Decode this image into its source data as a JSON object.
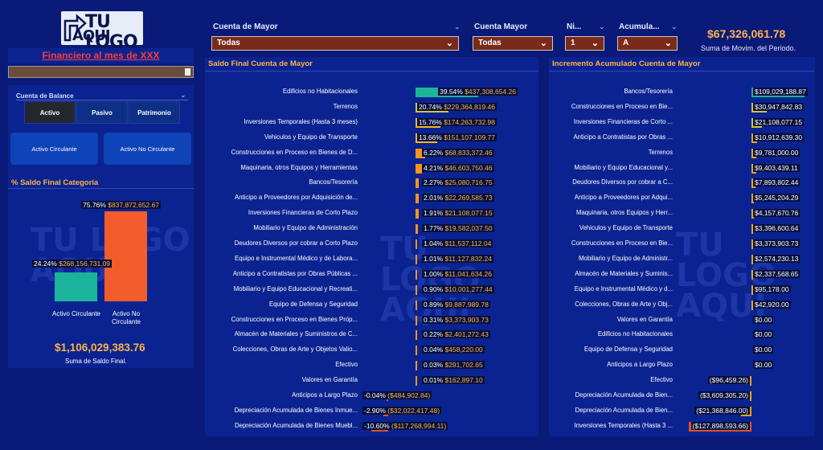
{
  "logo": {
    "line1": "TU LOGO",
    "line2": "AQUI"
  },
  "filters": [
    {
      "label": "Cuenta de Mayor",
      "value": "Todas"
    },
    {
      "label": "Cuenta Mayor",
      "value": "Todas"
    },
    {
      "label": "Ni...",
      "value": "1"
    },
    {
      "label": "Acumula...",
      "value": "A"
    }
  ],
  "kpi_top": {
    "value": "$67,326,061.78",
    "label": "Suma de Movim. del Periodo."
  },
  "left": {
    "title": "Financiero al mes de XXX",
    "cuenta_label": "Cuenta de Balance",
    "tabs": [
      "Activo",
      "Pasivo",
      "Patrimonio"
    ],
    "buttons": [
      "Activo Circulante",
      "Activo No Circulante"
    ],
    "chart_title": "% Saldo Final Categoría",
    "total": "$1,106,029,383.76",
    "total_label": "Suma de Saldo Final."
  },
  "colors": {
    "teal": "#1bb39a",
    "orange": "#f35c2b",
    "accent": "#ffb24a",
    "negative": "#e8521f"
  },
  "chart_data": [
    {
      "type": "bar",
      "title": "% Saldo Final Categoría",
      "categories": [
        "Activo Circulante",
        "Activo No Circulante"
      ],
      "values": [
        268156731.09,
        837872652.67
      ],
      "percents": [
        "24.24%",
        "75.76%"
      ],
      "value_labels": [
        "$268,156,731.09",
        "$837,872,652.67"
      ]
    },
    {
      "type": "bar",
      "title": "Saldo Final Cuenta de Mayor",
      "orientation": "horizontal",
      "rows": [
        {
          "name": "Edificios no Habitacionales",
          "pct": "39.54%",
          "amount": "$437,308,654.26",
          "value": 437308654.26
        },
        {
          "name": "Terrenos",
          "pct": "20.74%",
          "amount": "$229,364,819.46",
          "value": 229364819.46
        },
        {
          "name": "Inversiones Temporales (Hasta 3 meses)",
          "pct": "15.76%",
          "amount": "$174,263,732.98",
          "value": 174263732.98
        },
        {
          "name": "Vehiculos y Equipo de Transporte",
          "pct": "13.66%",
          "amount": "$151,107,109.77",
          "value": 151107109.77
        },
        {
          "name": "Construcciones en Proceso en Bienes de D...",
          "pct": "6.22%",
          "amount": "$68,833,372.46",
          "value": 68833372.46
        },
        {
          "name": "Maquinaria, otros Equipos y Herramientas",
          "pct": "4.21%",
          "amount": "$46,603,750.46",
          "value": 46603750.46
        },
        {
          "name": "Bancos/Tesorería",
          "pct": "2.27%",
          "amount": "$25,080,716.75",
          "value": 25080716.75
        },
        {
          "name": "Anticipo a Proveedores por Adquisición de...",
          "pct": "2.01%",
          "amount": "$22,269,585.73",
          "value": 22269585.73
        },
        {
          "name": "Inversiones Financieras de Corto Plazo",
          "pct": "1.91%",
          "amount": "$21,108,077.15",
          "value": 21108077.15
        },
        {
          "name": "Mobiliario y Equipo de Administración",
          "pct": "1.77%",
          "amount": "$19,582,037.50",
          "value": 19582037.5
        },
        {
          "name": "Deudores Diversos por cobrar a Corto Plazo",
          "pct": "1.04%",
          "amount": "$11,537,112.04",
          "value": 11537112.04
        },
        {
          "name": "Equipo e Instrumental Médico y de Labora...",
          "pct": "1.01%",
          "amount": "$11,127,832.24",
          "value": 11127832.24
        },
        {
          "name": "Anticipo a Contratistas por Obras Públicas ...",
          "pct": "1.00%",
          "amount": "$11,041,634.26",
          "value": 11041634.26
        },
        {
          "name": "Mobiliario y Equipo Educacional y Recreati...",
          "pct": "0.90%",
          "amount": "$10,001,277.44",
          "value": 10001277.44
        },
        {
          "name": "Equipo de Defensa y Seguridad",
          "pct": "0.89%",
          "amount": "$9,887,989.78",
          "value": 9887989.78
        },
        {
          "name": "Construcciones en Proceso en Bienes Próp...",
          "pct": "0.31%",
          "amount": "$3,373,903.73",
          "value": 3373903.73
        },
        {
          "name": "Almacén de Materiales y Suministros de C...",
          "pct": "0.22%",
          "amount": "$2,401,272.43",
          "value": 2401272.43
        },
        {
          "name": "Colecciones, Obras de Arte y Objetos Valio...",
          "pct": "0.04%",
          "amount": "$458,220.00",
          "value": 458220.0
        },
        {
          "name": "Efectivo",
          "pct": "0.03%",
          "amount": "$291,702.65",
          "value": 291702.65
        },
        {
          "name": "Valores en Garantía",
          "pct": "0.01%",
          "amount": "$162,897.10",
          "value": 162897.1
        },
        {
          "name": "Anticipos a Largo Plazo",
          "pct": "-0.04%",
          "amount": "($484,902.84)",
          "value": -484902.84
        },
        {
          "name": "Depreciación Acumulada de Bienes Inmue...",
          "pct": "-2.90%",
          "amount": "($32,022,417.48)",
          "value": -32022417.48
        },
        {
          "name": "Depreciación Acumulada de Bienes Muebl...",
          "pct": "-10.60%",
          "amount": "($117,268,994.11)",
          "value": -117268994.11
        }
      ]
    },
    {
      "type": "bar",
      "title": "Incremento Acumulado Cuenta de Mayor",
      "orientation": "horizontal",
      "rows": [
        {
          "name": "Bancos/Tesorería",
          "amount": "$109,029,188.87",
          "value": 109029188.87
        },
        {
          "name": "Construcciones en Proceso en Bie...",
          "amount": "$30,947,842.83",
          "value": 30947842.83
        },
        {
          "name": "Inversiones Financieras de Corto ...",
          "amount": "$21,108,077.15",
          "value": 21108077.15
        },
        {
          "name": "Anticipo a Contratistas por Obras ...",
          "amount": "$10,912,639.30",
          "value": 10912639.3
        },
        {
          "name": "Terrenos",
          "amount": "$9,781,000.00",
          "value": 9781000.0
        },
        {
          "name": "Mobiliario y Equipo Educacional y...",
          "amount": "$9,403,439.11",
          "value": 9403439.11
        },
        {
          "name": "Deudores Diversos por cobrar a C...",
          "amount": "$7,893,802.44",
          "value": 7893802.44
        },
        {
          "name": "Anticipo a Proveedores por Adqui...",
          "amount": "$5,245,204.29",
          "value": 5245204.29
        },
        {
          "name": "Maquinaria, otros Equipos y Herr...",
          "amount": "$4,157,670.76",
          "value": 4157670.76
        },
        {
          "name": "Vehiculos y Equipo de Transporte",
          "amount": "$3,396,600.64",
          "value": 3396600.64
        },
        {
          "name": "Construcciones en Proceso en Bie...",
          "amount": "$3,373,903.73",
          "value": 3373903.73
        },
        {
          "name": "Mobiliario y Equipo de Administr...",
          "amount": "$2,574,230.13",
          "value": 2574230.13
        },
        {
          "name": "Almacén de Materiales y Suminis...",
          "amount": "$2,337,568.65",
          "value": 2337568.65
        },
        {
          "name": "Equipo e Instrumental Médico y d...",
          "amount": "$95,178.00",
          "value": 95178.0
        },
        {
          "name": "Colecciones, Obras de Arte y Obj...",
          "amount": "$42,920.00",
          "value": 42920.0
        },
        {
          "name": "Valores en Garantía",
          "amount": "$0.00",
          "value": 0
        },
        {
          "name": "Edificios no Habitacionales",
          "amount": "$0.00",
          "value": 0
        },
        {
          "name": "Equipo de Defensa y Seguridad",
          "amount": "$0.00",
          "value": 0
        },
        {
          "name": "Anticipos a Largo Plazo",
          "amount": "$0.00",
          "value": 0
        },
        {
          "name": "Efectivo",
          "amount": "($96,459.26)",
          "value": -96459.26
        },
        {
          "name": "Depreciación Acumulada de Bien...",
          "amount": "($3,609,305.20)",
          "value": -3609305.2
        },
        {
          "name": "Depreciación Acumulada de Bien...",
          "amount": "($21,368,846.00)",
          "value": -21368846.0
        },
        {
          "name": "Inversiones Temporales (Hasta 3 ...",
          "amount": "($127,898,593.66)",
          "value": -127898593.66
        }
      ]
    }
  ]
}
